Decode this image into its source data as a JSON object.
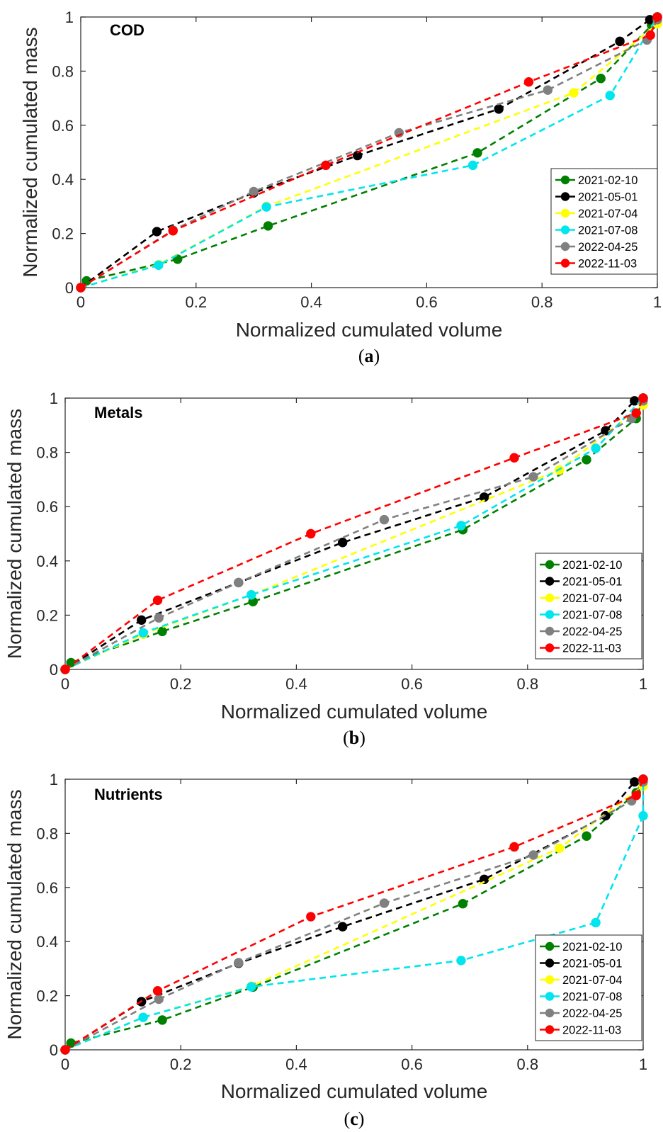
{
  "chart_data": [
    {
      "type": "line",
      "title": "COD",
      "caption_letter": "a",
      "xlabel": "Normalized cumulated volume",
      "ylabel": "Normalized cumulated mass",
      "xlim": [
        0,
        1
      ],
      "ylim": [
        0,
        1
      ],
      "xticks": [
        "0",
        "0.2",
        "0.4",
        "0.6",
        "0.8",
        "1"
      ],
      "yticks": [
        "0",
        "0.2",
        "0.4",
        "0.6",
        "0.8",
        "1"
      ],
      "legend_position": "lower-right",
      "series": [
        {
          "name": "2021-02-10",
          "color": "#008000",
          "points": [
            [
              0,
              0
            ],
            [
              0.01,
              0.025
            ],
            [
              0.168,
              0.105
            ],
            [
              0.325,
              0.228
            ],
            [
              0.688,
              0.498
            ],
            [
              0.902,
              0.773
            ],
            [
              0.99,
              0.97
            ],
            [
              1,
              1
            ]
          ]
        },
        {
          "name": "2021-05-01",
          "color": "#000000",
          "points": [
            [
              0,
              0
            ],
            [
              0.132,
              0.207
            ],
            [
              0.3,
              0.35
            ],
            [
              0.48,
              0.488
            ],
            [
              0.725,
              0.66
            ],
            [
              0.935,
              0.91
            ],
            [
              0.987,
              0.99
            ],
            [
              1,
              1
            ]
          ]
        },
        {
          "name": "2021-07-04",
          "color": "#FFFF00",
          "points": [
            [
              0,
              0
            ],
            [
              0.135,
              0.085
            ],
            [
              0.322,
              0.3
            ],
            [
              0.855,
              0.72
            ],
            [
              1,
              0.975
            ]
          ]
        },
        {
          "name": "2021-07-08",
          "color": "#00E5EE",
          "points": [
            [
              0,
              0
            ],
            [
              0.135,
              0.083
            ],
            [
              0.322,
              0.298
            ],
            [
              0.68,
              0.452
            ],
            [
              0.918,
              0.71
            ],
            [
              1,
              1
            ]
          ]
        },
        {
          "name": "2022-04-25",
          "color": "#808080",
          "points": [
            [
              0,
              0
            ],
            [
              0.16,
              0.212
            ],
            [
              0.3,
              0.355
            ],
            [
              0.552,
              0.572
            ],
            [
              0.81,
              0.73
            ],
            [
              0.982,
              0.915
            ],
            [
              1,
              0.99
            ]
          ]
        },
        {
          "name": "2022-11-03",
          "color": "#FF0000",
          "points": [
            [
              0,
              0
            ],
            [
              0.16,
              0.21
            ],
            [
              0.425,
              0.452
            ],
            [
              0.777,
              0.76
            ],
            [
              0.988,
              0.933
            ],
            [
              1,
              1
            ]
          ]
        }
      ]
    },
    {
      "type": "line",
      "title": "Metals",
      "caption_letter": "b",
      "xlabel": "Normalized cumulated volume",
      "ylabel": "Normalized cumulated mass",
      "xlim": [
        0,
        1
      ],
      "ylim": [
        0,
        1
      ],
      "xticks": [
        "0",
        "0.2",
        "0.4",
        "0.6",
        "0.8",
        "1"
      ],
      "yticks": [
        "0",
        "0.2",
        "0.4",
        "0.6",
        "0.8",
        "1"
      ],
      "legend_position": "lower-right",
      "series": [
        {
          "name": "2021-02-10",
          "color": "#008000",
          "points": [
            [
              0,
              0
            ],
            [
              0.01,
              0.025
            ],
            [
              0.168,
              0.14
            ],
            [
              0.325,
              0.25
            ],
            [
              0.688,
              0.515
            ],
            [
              0.902,
              0.773
            ],
            [
              0.988,
              0.925
            ],
            [
              1,
              1
            ]
          ]
        },
        {
          "name": "2021-05-01",
          "color": "#000000",
          "points": [
            [
              0,
              0
            ],
            [
              0.132,
              0.182
            ],
            [
              0.3,
              0.32
            ],
            [
              0.48,
              0.468
            ],
            [
              0.725,
              0.635
            ],
            [
              0.935,
              0.88
            ],
            [
              0.985,
              0.99
            ],
            [
              1,
              1
            ]
          ]
        },
        {
          "name": "2021-07-04",
          "color": "#FFFF00",
          "points": [
            [
              0,
              0
            ],
            [
              0.135,
              0.13
            ],
            [
              0.322,
              0.275
            ],
            [
              0.855,
              0.735
            ],
            [
              1,
              0.975
            ]
          ]
        },
        {
          "name": "2021-07-08",
          "color": "#00E5EE",
          "points": [
            [
              0,
              0
            ],
            [
              0.135,
              0.135
            ],
            [
              0.322,
              0.275
            ],
            [
              0.685,
              0.53
            ],
            [
              0.918,
              0.815
            ],
            [
              1,
              1
            ]
          ]
        },
        {
          "name": "2022-04-25",
          "color": "#808080",
          "points": [
            [
              0,
              0
            ],
            [
              0.162,
              0.19
            ],
            [
              0.3,
              0.32
            ],
            [
              0.552,
              0.552
            ],
            [
              0.81,
              0.71
            ],
            [
              0.98,
              0.925
            ],
            [
              1,
              0.99
            ]
          ]
        },
        {
          "name": "2022-11-03",
          "color": "#FF0000",
          "points": [
            [
              0,
              0
            ],
            [
              0.16,
              0.255
            ],
            [
              0.425,
              0.5
            ],
            [
              0.777,
              0.78
            ],
            [
              0.988,
              0.945
            ],
            [
              1,
              1
            ]
          ]
        }
      ]
    },
    {
      "type": "line",
      "title": "Nutrients",
      "caption_letter": "c",
      "xlabel": "Normalized cumulated volume",
      "ylabel": "Normalized cumulated mass",
      "xlim": [
        0,
        1
      ],
      "ylim": [
        0,
        1
      ],
      "xticks": [
        "0",
        "0.2",
        "0.4",
        "0.6",
        "0.8",
        "1"
      ],
      "yticks": [
        "0",
        "0.2",
        "0.4",
        "0.6",
        "0.8",
        "1"
      ],
      "legend_position": "lower-right",
      "series": [
        {
          "name": "2021-02-10",
          "color": "#008000",
          "points": [
            [
              0,
              0
            ],
            [
              0.01,
              0.025
            ],
            [
              0.168,
              0.11
            ],
            [
              0.325,
              0.232
            ],
            [
              0.688,
              0.54
            ],
            [
              0.902,
              0.79
            ],
            [
              0.988,
              0.95
            ],
            [
              1,
              1
            ]
          ]
        },
        {
          "name": "2021-05-01",
          "color": "#000000",
          "points": [
            [
              0,
              0
            ],
            [
              0.132,
              0.178
            ],
            [
              0.3,
              0.32
            ],
            [
              0.48,
              0.455
            ],
            [
              0.725,
              0.63
            ],
            [
              0.935,
              0.865
            ],
            [
              0.985,
              0.99
            ],
            [
              1,
              1
            ]
          ]
        },
        {
          "name": "2021-07-04",
          "color": "#FFFF00",
          "points": [
            [
              0,
              0
            ],
            [
              0.135,
              0.12
            ],
            [
              0.322,
              0.235
            ],
            [
              0.855,
              0.745
            ],
            [
              1,
              0.975
            ]
          ]
        },
        {
          "name": "2021-07-08",
          "color": "#00E5EE",
          "points": [
            [
              0,
              0
            ],
            [
              0.135,
              0.12
            ],
            [
              0.322,
              0.233
            ],
            [
              0.685,
              0.33
            ],
            [
              0.918,
              0.47
            ],
            [
              1,
              0.865
            ],
            [
              1,
              1
            ]
          ]
        },
        {
          "name": "2022-04-25",
          "color": "#808080",
          "points": [
            [
              0,
              0
            ],
            [
              0.162,
              0.187
            ],
            [
              0.3,
              0.322
            ],
            [
              0.552,
              0.542
            ],
            [
              0.81,
              0.72
            ],
            [
              0.98,
              0.92
            ],
            [
              1,
              0.99
            ]
          ]
        },
        {
          "name": "2022-11-03",
          "color": "#FF0000",
          "points": [
            [
              0,
              0
            ],
            [
              0.16,
              0.218
            ],
            [
              0.425,
              0.492
            ],
            [
              0.777,
              0.75
            ],
            [
              0.988,
              0.94
            ],
            [
              1,
              1
            ]
          ]
        }
      ]
    }
  ]
}
